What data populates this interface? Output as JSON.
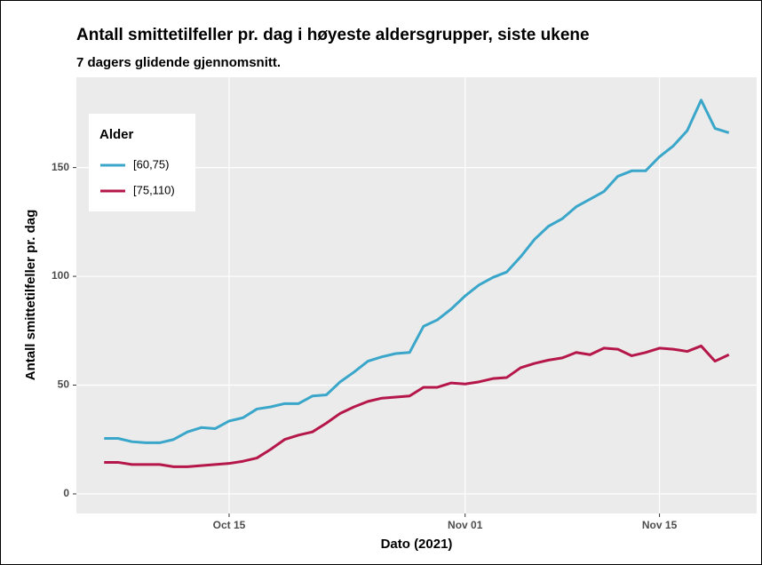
{
  "chart_data": {
    "type": "line",
    "title": "Antall smittetilfeller pr. dag i høyeste aldersgrupper, siste ukene",
    "subtitle": "7 dagers glidende gjennomsnitt.",
    "x_label": "Dato (2021)",
    "y_label": "Antall smittetilfeller pr. dag",
    "legend_title": "Alder",
    "legend_position": "top-left",
    "grid": true,
    "x": [
      "2021-10-06",
      "2021-10-07",
      "2021-10-08",
      "2021-10-09",
      "2021-10-10",
      "2021-10-11",
      "2021-10-12",
      "2021-10-13",
      "2021-10-14",
      "2021-10-15",
      "2021-10-16",
      "2021-10-17",
      "2021-10-18",
      "2021-10-19",
      "2021-10-20",
      "2021-10-21",
      "2021-10-22",
      "2021-10-23",
      "2021-10-24",
      "2021-10-25",
      "2021-10-26",
      "2021-10-27",
      "2021-10-28",
      "2021-10-29",
      "2021-10-30",
      "2021-10-31",
      "2021-11-01",
      "2021-11-02",
      "2021-11-03",
      "2021-11-04",
      "2021-11-05",
      "2021-11-06",
      "2021-11-07",
      "2021-11-08",
      "2021-11-09",
      "2021-11-10",
      "2021-11-11",
      "2021-11-12",
      "2021-11-13",
      "2021-11-14",
      "2021-11-15",
      "2021-11-16",
      "2021-11-17",
      "2021-11-18",
      "2021-11-19",
      "2021-11-20"
    ],
    "series": [
      {
        "name": "[60,75)",
        "color": "#3aa6c9",
        "values": [
          25.5,
          25.5,
          24,
          23.5,
          23.5,
          25,
          28.5,
          30.5,
          30,
          33.5,
          35,
          39,
          40,
          41.5,
          41.5,
          45,
          45.5,
          51.5,
          56,
          61,
          63,
          64.5,
          65,
          77,
          80,
          85,
          91,
          96,
          99.5,
          102,
          109,
          117,
          123,
          126.5,
          132,
          135.5,
          139,
          146,
          148.5,
          148.5,
          155,
          160,
          167,
          181,
          168,
          166
        ]
      },
      {
        "name": "[75,110)",
        "color": "#b5174a",
        "values": [
          14.5,
          14.5,
          13.5,
          13.5,
          13.5,
          12.5,
          12.5,
          13,
          13.5,
          14,
          15,
          16.5,
          20.5,
          25,
          27,
          28.5,
          32.5,
          37,
          40,
          42.5,
          44,
          44.5,
          45,
          49,
          49,
          51,
          50.5,
          51.5,
          53,
          53.5,
          58,
          60,
          61.5,
          62.5,
          65,
          64,
          67,
          66.5,
          63.5,
          65,
          67,
          66.5,
          65.5,
          68,
          61,
          64
        ]
      }
    ],
    "xlim": [
      "2021-10-04",
      "2021-11-22"
    ],
    "xticks": [
      {
        "value": "2021-10-15",
        "label": "Oct 15"
      },
      {
        "value": "2021-11-01",
        "label": "Nov 01"
      },
      {
        "value": "2021-11-15",
        "label": "Nov 15"
      }
    ],
    "ylim": [
      -9,
      191.5
    ],
    "yticks": [
      0,
      50,
      100,
      150
    ]
  }
}
